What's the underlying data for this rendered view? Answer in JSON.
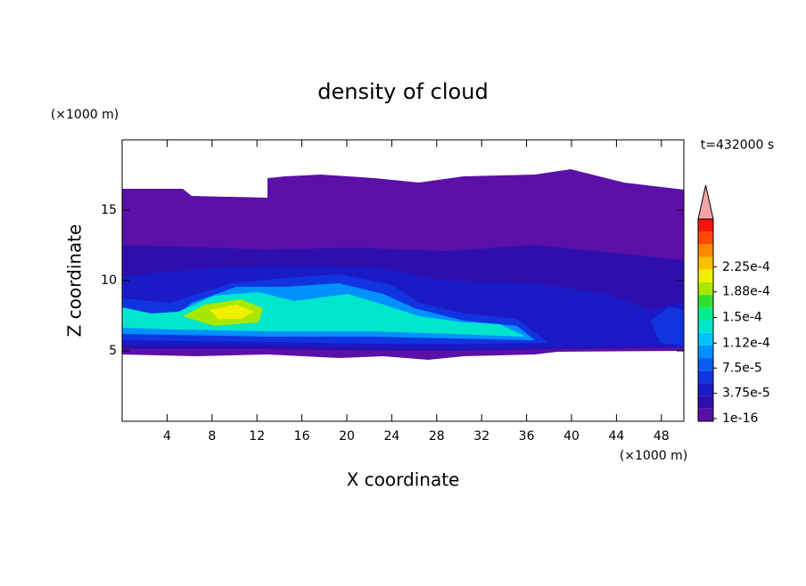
{
  "chart_data": {
    "type": "contour",
    "title": "density of cloud",
    "xlabel": "X coordinate",
    "ylabel": "Z coordinate",
    "x_unit": "(×1000 m)",
    "y_unit": "(×1000 m)",
    "annotation": "t=432000 s",
    "xlim": [
      0,
      50
    ],
    "xticks": [
      4,
      8,
      12,
      16,
      20,
      24,
      28,
      32,
      36,
      40,
      44,
      48
    ],
    "ylim": [
      0,
      20
    ],
    "yticks": [
      5,
      10,
      15
    ],
    "colorbar": {
      "colors": [
        "#5b10a8",
        "#2e0fae",
        "#1a1ac6",
        "#1034e0",
        "#0a5cf2",
        "#0090ff",
        "#00c4f8",
        "#00e6cc",
        "#00ee8c",
        "#30e030",
        "#a8e800",
        "#f0f000",
        "#ffc000",
        "#ff8800",
        "#ff4800",
        "#ff1010"
      ],
      "extend_color": "#f4a4a4",
      "ticks": [
        {
          "value": 1e-16,
          "label": "1e-16"
        },
        {
          "value": 3.75e-05,
          "label": "3.75e-5"
        },
        {
          "value": 7.5e-05,
          "label": "7.5e-5"
        },
        {
          "value": 0.000112,
          "label": "1.12e-4"
        },
        {
          "value": 0.00015,
          "label": "1.5e-4"
        },
        {
          "value": 0.000188,
          "label": "1.88e-4"
        },
        {
          "value": 0.000225,
          "label": "2.25e-4"
        }
      ]
    }
  }
}
